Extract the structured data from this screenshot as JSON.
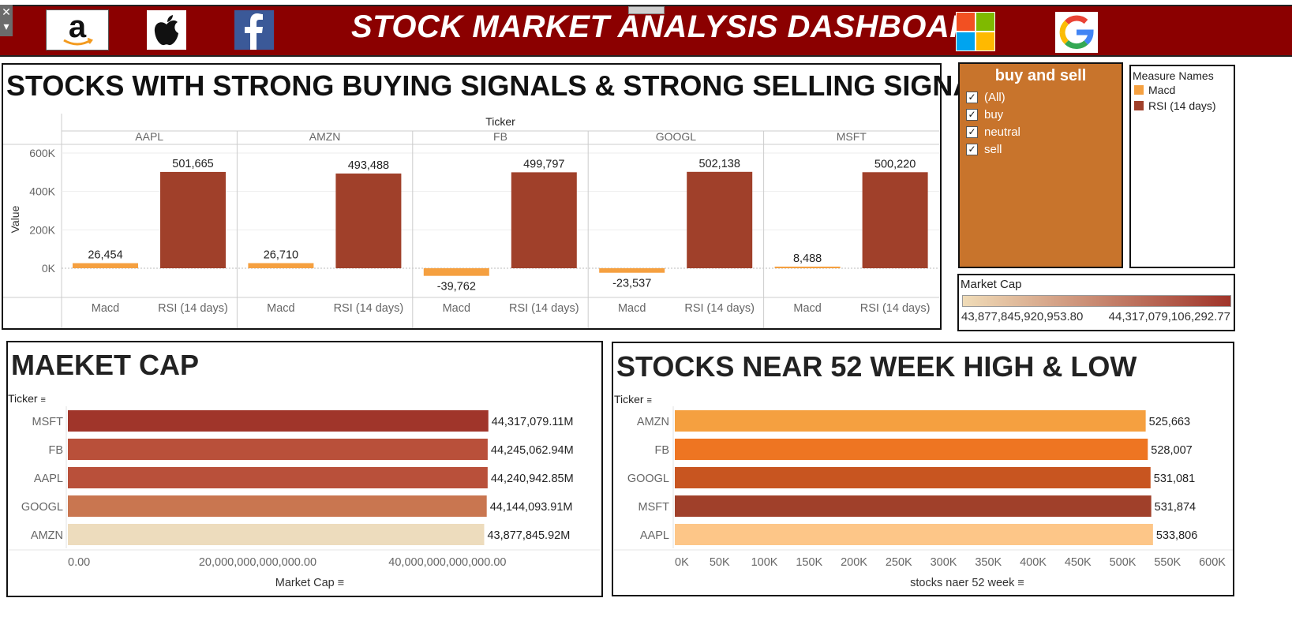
{
  "header": {
    "title": "STOCK MARKET ANALYSIS DASHBOARD",
    "close_glyph": "✕",
    "menu_glyph": "▾",
    "logos": [
      "amazon-logo",
      "apple-logo",
      "facebook-logo",
      "microsoft-logo",
      "google-logo"
    ]
  },
  "signals": {
    "title": "STOCKS WITH STRONG BUYING SIGNALS & STRONG SELLING SIGNALS",
    "column_header": "Ticker",
    "y_label": "Value",
    "y_ticks": [
      "600K",
      "400K",
      "200K",
      "0K"
    ],
    "x_labels": [
      "Macd",
      "RSI (14 days)"
    ]
  },
  "filter": {
    "title": "buy and sell",
    "options": [
      {
        "label": "(All)",
        "checked": true
      },
      {
        "label": "buy",
        "checked": true
      },
      {
        "label": "neutral",
        "checked": true
      },
      {
        "label": "sell",
        "checked": true
      }
    ]
  },
  "legend": {
    "title": "Measure Names",
    "items": [
      {
        "label": "Macd",
        "color": "#f5a040"
      },
      {
        "label": "RSI (14 days)",
        "color": "#a0402a"
      }
    ]
  },
  "market_cap_legend": {
    "title": "Market Cap",
    "min": "43,877,845,920,953.80",
    "max": "44,317,079,106,292.77",
    "gradient": [
      "#f0dcb8",
      "#a0352a"
    ]
  },
  "market_cap": {
    "title": "MAEKET CAP",
    "row_header": "Ticker",
    "x_label": "Market Cap",
    "x_ticks": [
      "0.00",
      "20,000,000,000,000.00",
      "40,000,000,000,000.00"
    ],
    "sort_icon": "sort-icon"
  },
  "high_low": {
    "title": "STOCKS NEAR 52 WEEK HIGH & LOW",
    "row_header": "Ticker",
    "x_label": "stocks naer 52 week",
    "x_ticks": [
      "0K",
      "50K",
      "100K",
      "150K",
      "200K",
      "250K",
      "300K",
      "350K",
      "400K",
      "450K",
      "500K",
      "550K",
      "600K"
    ],
    "sort_icon": "sort-icon"
  },
  "chart_data": [
    {
      "type": "bar",
      "title": "STOCKS WITH STRONG BUYING SIGNALS & STRONG SELLING SIGNALS",
      "ylabel": "Value",
      "ylim": [
        -90000,
        620000
      ],
      "categories": [
        "AAPL",
        "AMZN",
        "FB",
        "GOOGL",
        "MSFT"
      ],
      "series": [
        {
          "name": "Macd",
          "values": [
            26454,
            26710,
            -39762,
            -23537,
            8488
          ],
          "labels": [
            "26,454",
            "26,710",
            "-39,762",
            "-23,537",
            "8,488"
          ],
          "color": "#f5a040"
        },
        {
          "name": "RSI (14 days)",
          "values": [
            501665,
            493488,
            499797,
            502138,
            500220
          ],
          "labels": [
            "501,665",
            "493,488",
            "499,797",
            "502,138",
            "500,220"
          ],
          "color": "#a0402a"
        }
      ]
    },
    {
      "type": "bar",
      "title": "MAEKET CAP",
      "xlabel": "Market Cap",
      "ylabel": "Ticker",
      "xlim": [
        0,
        46000000000000
      ],
      "categories": [
        "MSFT",
        "FB",
        "AAPL",
        "GOOGL",
        "AMZN"
      ],
      "values": [
        44317079110000,
        44245062940000,
        44240942850000,
        44144093910000,
        43877845920000
      ],
      "labels": [
        "44,317,079.11M",
        "44,245,062.94M",
        "44,240,942.85M",
        "44,144,093.91M",
        "43,877,845.92M"
      ],
      "colors": [
        "#a0352a",
        "#b9503a",
        "#b9503a",
        "#c97650",
        "#eddcbd"
      ]
    },
    {
      "type": "bar",
      "title": "STOCKS NEAR 52 WEEK HIGH & LOW",
      "xlabel": "stocks naer 52 week",
      "ylabel": "Ticker",
      "xlim": [
        0,
        600000
      ],
      "categories": [
        "AMZN",
        "FB",
        "GOOGL",
        "MSFT",
        "AAPL"
      ],
      "values": [
        525663,
        528007,
        531081,
        531874,
        533806
      ],
      "labels": [
        "525,663",
        "528,007",
        "531,081",
        "531,874",
        "533,806"
      ],
      "colors": [
        "#f5a040",
        "#ee7522",
        "#c85520",
        "#a0402a",
        "#fdc688"
      ]
    }
  ]
}
